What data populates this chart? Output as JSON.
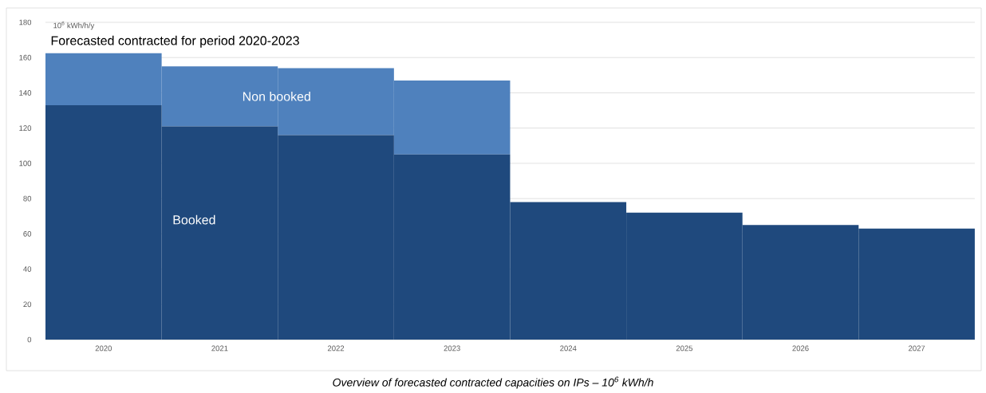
{
  "chart_data": {
    "type": "bar",
    "stacked": true,
    "grid": "y",
    "ylabel": "10$^{6}$ kWh/h/y",
    "categories": [
      "2020",
      "2021",
      "2022",
      "2023",
      "2024",
      "2025",
      "2026",
      "2027"
    ],
    "series": [
      {
        "name": "Booked",
        "color": "#1f497d",
        "values": [
          133,
          121,
          116,
          105,
          78,
          72,
          65,
          63
        ]
      },
      {
        "name": "Non booked",
        "color": "#4f81bd",
        "values": [
          29.5,
          34,
          38,
          42,
          null,
          null,
          null,
          null
        ]
      }
    ],
    "ylim": [
      0,
      180
    ],
    "yticks": [
      0,
      20,
      40,
      60,
      80,
      100,
      120,
      140,
      160,
      180
    ],
    "annotations": [
      "Forecasted contracted for period 2020-2023",
      "Overview of forecasted contracted capacities on IPs – 10$^{6}$ kWh/h"
    ]
  }
}
